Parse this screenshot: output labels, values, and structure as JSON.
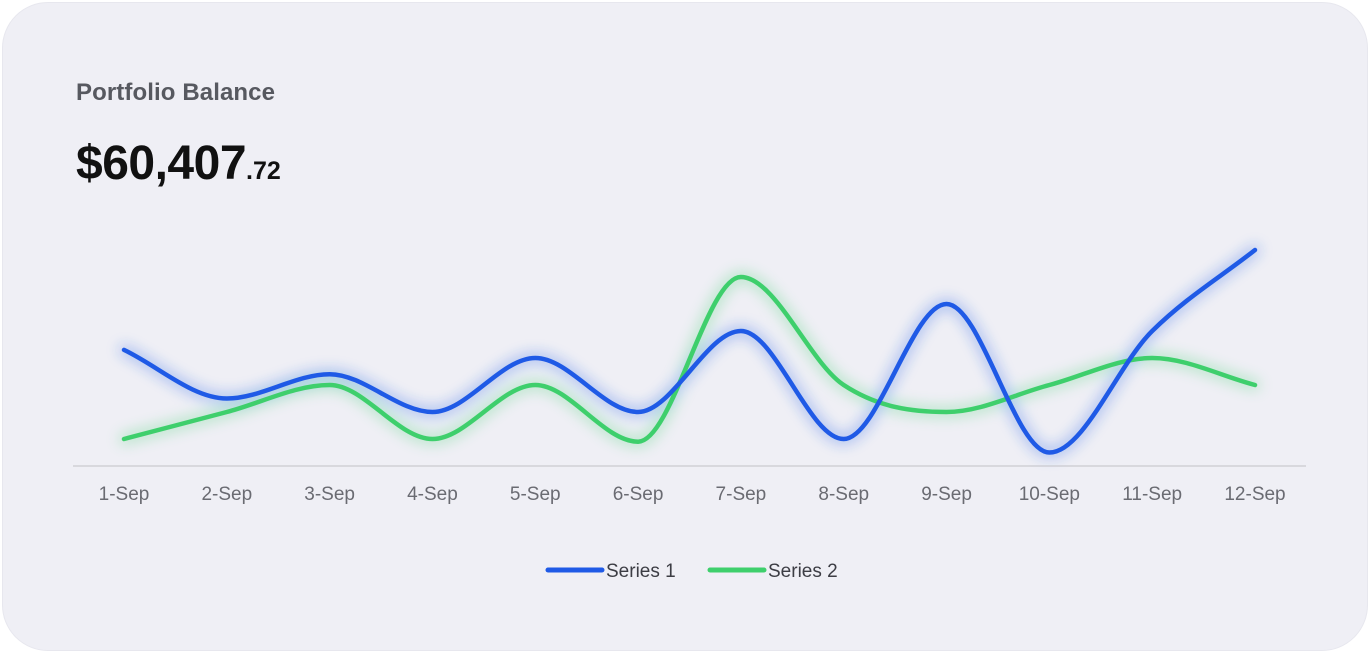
{
  "card": {
    "title": "Portfolio Balance",
    "balance_main": "$60,407",
    "balance_cents": ".72"
  },
  "chart_data": {
    "type": "line",
    "categories": [
      "1-Sep",
      "2-Sep",
      "3-Sep",
      "4-Sep",
      "5-Sep",
      "6-Sep",
      "7-Sep",
      "8-Sep",
      "9-Sep",
      "10-Sep",
      "11-Sep",
      "12-Sep"
    ],
    "series": [
      {
        "name": "Series 1",
        "color": "#1f5ae6",
        "values": [
          4.3,
          2.5,
          3.4,
          2.0,
          4.0,
          2.0,
          5.0,
          1.0,
          6.0,
          0.5,
          5.0,
          8.0
        ]
      },
      {
        "name": "Series 2",
        "color": "#3ecf6c",
        "values": [
          1.0,
          2.0,
          3.0,
          1.0,
          3.0,
          0.9,
          7.0,
          3.0,
          2.0,
          3.0,
          4.0,
          3.0
        ]
      }
    ],
    "ylim": [
      0,
      10
    ],
    "smooth": true,
    "grid": false,
    "y_axis_labels_shown": false,
    "legend_position": "bottom"
  }
}
